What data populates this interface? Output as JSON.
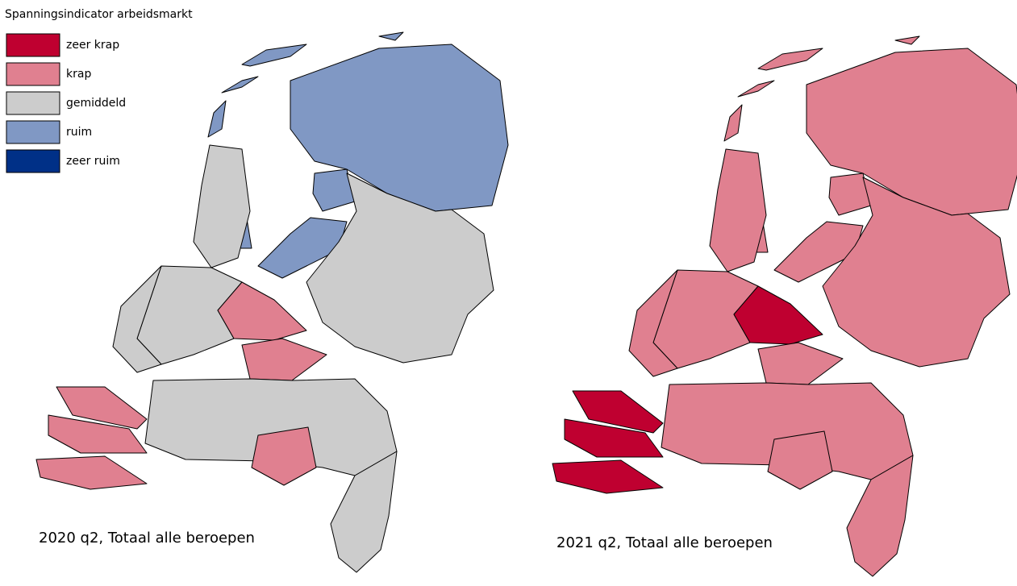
{
  "legend": {
    "title": "Spanningsindicator arbeidsmarkt",
    "items": [
      {
        "label": "zeer krap",
        "color": "#bf0030"
      },
      {
        "label": "krap",
        "color": "#e08090"
      },
      {
        "label": "gemiddeld",
        "color": "#cccccc"
      },
      {
        "label": "ruim",
        "color": "#8098c4"
      },
      {
        "label": "zeer ruim",
        "color": "#003087"
      }
    ]
  },
  "maps": [
    {
      "caption": "2020 q2, Totaal alle beroepen"
    },
    {
      "caption": "2021 q2, Totaal alle beroepen"
    }
  ]
}
